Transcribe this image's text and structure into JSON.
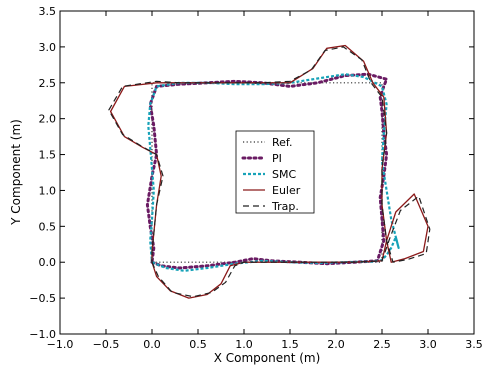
{
  "chart_data": {
    "type": "line",
    "title": "",
    "xlabel": "X Component (m)",
    "ylabel": "Y Component (m)",
    "xlim": [
      -1.0,
      3.5
    ],
    "ylim": [
      -1.0,
      3.5
    ],
    "xticks": [
      "−1.0",
      "−0.5",
      "0.0",
      "0.5",
      "1.0",
      "1.5",
      "2.0",
      "2.5",
      "3.0",
      "3.5"
    ],
    "yticks": [
      "−1.0",
      "−0.5",
      "0.0",
      "0.5",
      "1.0",
      "1.5",
      "2.0",
      "2.5",
      "3.0",
      "3.5"
    ],
    "grid": false,
    "legend_position": "center",
    "series": [
      {
        "name": "Ref.",
        "color": "#333333",
        "style": "dotted",
        "x": [
          0.0,
          2.5,
          2.5,
          0.0,
          0.0
        ],
        "y": [
          0.0,
          0.0,
          2.5,
          2.5,
          0.0
        ]
      },
      {
        "name": "PI",
        "color": "#6a1b63",
        "style": "dots",
        "x": [
          0.0,
          0.1,
          0.3,
          0.6,
          0.9,
          1.1,
          1.3,
          1.6,
          1.9,
          2.2,
          2.45,
          2.52,
          2.5,
          2.48,
          2.52,
          2.55,
          2.52,
          2.5,
          2.48,
          2.52,
          2.55,
          2.35,
          2.1,
          1.8,
          1.5,
          1.2,
          0.9,
          0.6,
          0.3,
          0.05,
          -0.02,
          0.02,
          0.05,
          0.0,
          -0.05,
          -0.02,
          0.02,
          0.0
        ],
        "y": [
          0.0,
          -0.05,
          -0.08,
          -0.05,
          0.0,
          0.05,
          0.02,
          0.0,
          -0.02,
          0.0,
          0.02,
          0.3,
          0.6,
          0.9,
          1.2,
          1.5,
          1.8,
          2.1,
          2.3,
          2.45,
          2.55,
          2.62,
          2.6,
          2.5,
          2.45,
          2.5,
          2.52,
          2.5,
          2.48,
          2.45,
          2.2,
          1.9,
          1.5,
          1.2,
          0.8,
          0.5,
          0.2,
          0.0
        ]
      },
      {
        "name": "SMC",
        "color": "#17a2b8",
        "style": "markers",
        "x": [
          0.0,
          0.15,
          0.35,
          0.6,
          0.9,
          1.2,
          1.5,
          1.8,
          2.1,
          2.4,
          2.5,
          2.55,
          2.6,
          2.65,
          2.68,
          2.6,
          2.55,
          2.5,
          2.52,
          2.55,
          2.5,
          2.3,
          2.1,
          1.8,
          1.5,
          1.2,
          0.9,
          0.6,
          0.3,
          0.05,
          -0.02,
          -0.04,
          -0.02,
          0.0,
          0.02,
          0.0,
          -0.02,
          0.0
        ],
        "y": [
          0.0,
          -0.08,
          -0.12,
          -0.08,
          -0.02,
          0.02,
          0.0,
          -0.01,
          0.0,
          0.01,
          0.03,
          0.1,
          0.2,
          0.35,
          0.2,
          0.6,
          1.0,
          1.4,
          1.8,
          2.2,
          2.45,
          2.58,
          2.62,
          2.56,
          2.5,
          2.48,
          2.48,
          2.5,
          2.5,
          2.45,
          2.2,
          1.9,
          1.6,
          1.3,
          1.0,
          0.6,
          0.3,
          0.0
        ]
      },
      {
        "name": "Euler",
        "color": "#8b1a1a",
        "style": "solid",
        "x": [
          0.0,
          0.05,
          0.2,
          0.4,
          0.6,
          0.75,
          0.85,
          1.0,
          1.3,
          1.6,
          1.9,
          2.2,
          2.5,
          2.55,
          2.65,
          2.85,
          3.0,
          2.95,
          2.75,
          2.6,
          2.55,
          2.5,
          2.5,
          2.55,
          2.52,
          2.4,
          2.3,
          2.1,
          1.9,
          1.75,
          1.5,
          1.2,
          0.9,
          0.6,
          0.3,
          0.05,
          -0.3,
          -0.45,
          -0.3,
          -0.1,
          0.05,
          0.1,
          0.05,
          0.02,
          0.0,
          0.0
        ],
        "y": [
          0.0,
          -0.2,
          -0.4,
          -0.5,
          -0.45,
          -0.3,
          -0.05,
          0.0,
          0.0,
          0.0,
          0.0,
          0.0,
          0.02,
          0.3,
          0.7,
          0.95,
          0.5,
          0.15,
          0.05,
          0.0,
          0.3,
          0.8,
          1.3,
          1.8,
          2.3,
          2.5,
          2.8,
          3.02,
          2.98,
          2.7,
          2.5,
          2.5,
          2.5,
          2.5,
          2.5,
          2.5,
          2.45,
          2.1,
          1.75,
          1.6,
          1.5,
          1.2,
          0.8,
          0.4,
          0.15,
          0.0
        ]
      },
      {
        "name": "Trap.",
        "color": "#222222",
        "style": "dashed",
        "x": [
          0.0,
          0.07,
          0.22,
          0.45,
          0.65,
          0.8,
          0.9,
          1.0,
          1.3,
          1.6,
          1.9,
          2.2,
          2.5,
          2.58,
          2.7,
          2.9,
          3.02,
          2.98,
          2.78,
          2.62,
          2.55,
          2.5,
          2.5,
          2.55,
          2.5,
          2.38,
          2.28,
          2.08,
          1.88,
          1.73,
          1.5,
          1.2,
          0.9,
          0.6,
          0.3,
          0.05,
          -0.32,
          -0.47,
          -0.32,
          -0.12,
          0.05,
          0.12,
          0.05,
          0.02,
          0.0,
          0.0
        ],
        "y": [
          0.0,
          -0.2,
          -0.42,
          -0.48,
          -0.42,
          -0.28,
          -0.05,
          0.0,
          0.0,
          0.0,
          0.0,
          0.0,
          0.02,
          0.32,
          0.72,
          0.92,
          0.46,
          0.12,
          0.04,
          0.0,
          0.3,
          0.8,
          1.3,
          1.8,
          2.3,
          2.5,
          2.82,
          3.0,
          2.95,
          2.68,
          2.52,
          2.5,
          2.5,
          2.5,
          2.5,
          2.52,
          2.45,
          2.12,
          1.78,
          1.62,
          1.5,
          1.2,
          0.8,
          0.4,
          0.15,
          0.0
        ]
      }
    ]
  }
}
